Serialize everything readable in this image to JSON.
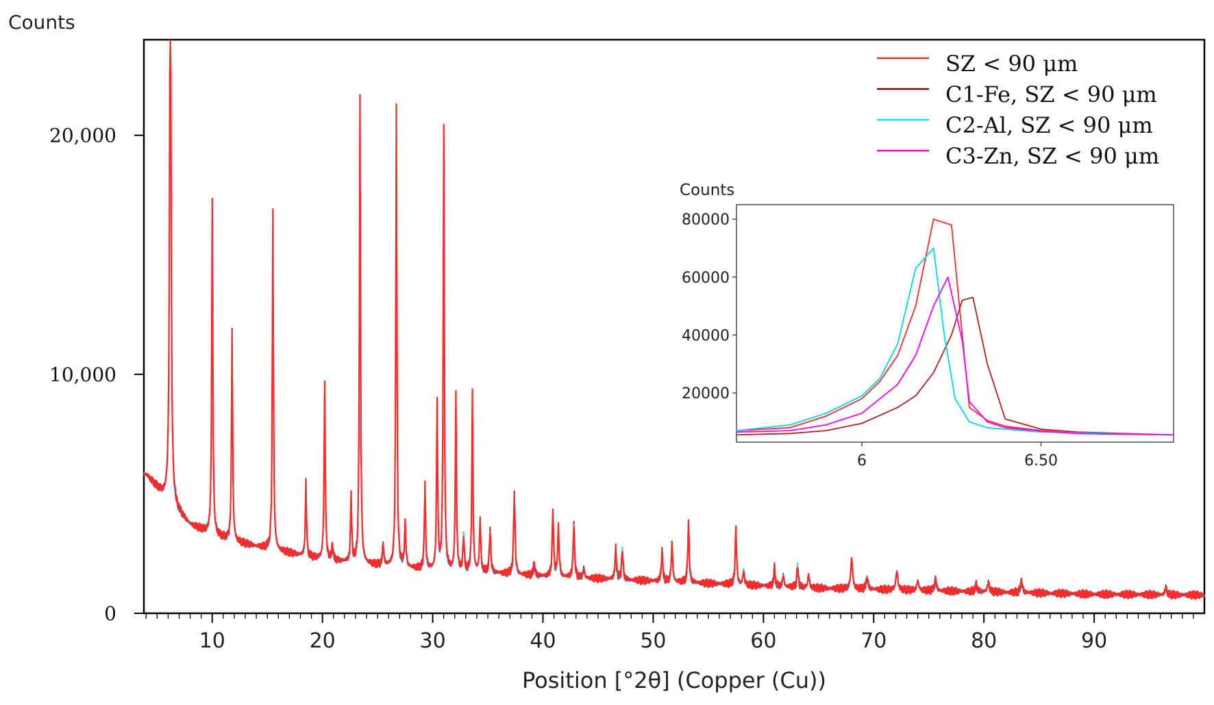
{
  "chart_data": [
    {
      "type": "line",
      "title": "",
      "ylabel": "Counts",
      "xlabel": "Position [°2θ] (Copper (Cu))",
      "xlim": [
        3.8,
        100
      ],
      "ylim": [
        0,
        24000
      ],
      "x_ticks": [
        10,
        20,
        30,
        40,
        50,
        60,
        70,
        80,
        90
      ],
      "y_ticks": [
        0,
        10000,
        20000
      ],
      "y_tick_labels": [
        "0",
        "10,000",
        "20,000"
      ],
      "grid": false,
      "legend_position": "top-right",
      "background": [
        [
          4,
          5800
        ],
        [
          6,
          4700
        ],
        [
          8,
          3700
        ],
        [
          10,
          3300
        ],
        [
          12,
          3000
        ],
        [
          15,
          2700
        ],
        [
          20,
          2250
        ],
        [
          25,
          2000
        ],
        [
          30,
          1800
        ],
        [
          35,
          1700
        ],
        [
          40,
          1550
        ],
        [
          45,
          1450
        ],
        [
          50,
          1350
        ],
        [
          55,
          1250
        ],
        [
          60,
          1150
        ],
        [
          65,
          1050
        ],
        [
          70,
          1000
        ],
        [
          75,
          950
        ],
        [
          80,
          900
        ],
        [
          85,
          850
        ],
        [
          90,
          800
        ],
        [
          95,
          780
        ],
        [
          100,
          760
        ]
      ],
      "peaks": [
        [
          6.2,
          26000,
          0.15
        ],
        [
          10.0,
          14000,
          0.12
        ],
        [
          11.8,
          8900,
          0.12
        ],
        [
          15.5,
          14200,
          0.12
        ],
        [
          18.5,
          3100,
          0.12
        ],
        [
          20.2,
          7400,
          0.13
        ],
        [
          20.9,
          600,
          0.15
        ],
        [
          22.6,
          2900,
          0.12
        ],
        [
          23.4,
          19500,
          0.12
        ],
        [
          25.5,
          900,
          0.15
        ],
        [
          26.7,
          19500,
          0.12
        ],
        [
          27.5,
          1800,
          0.15
        ],
        [
          29.3,
          3600,
          0.13
        ],
        [
          30.4,
          7100,
          0.12
        ],
        [
          31.0,
          18500,
          0.12
        ],
        [
          32.1,
          7500,
          0.12
        ],
        [
          32.8,
          1500,
          0.13
        ],
        [
          33.6,
          7500,
          0.12
        ],
        [
          34.3,
          2300,
          0.13
        ],
        [
          35.2,
          1800,
          0.15
        ],
        [
          37.4,
          3500,
          0.15
        ],
        [
          39.2,
          500,
          0.15
        ],
        [
          40.9,
          2800,
          0.15
        ],
        [
          41.4,
          2100,
          0.15
        ],
        [
          42.8,
          2300,
          0.15
        ],
        [
          43.7,
          400,
          0.15
        ],
        [
          46.6,
          1300,
          0.15
        ],
        [
          47.2,
          1300,
          0.15
        ],
        [
          50.8,
          1300,
          0.15
        ],
        [
          51.7,
          1600,
          0.15
        ],
        [
          53.2,
          2500,
          0.15
        ],
        [
          57.5,
          2400,
          0.15
        ],
        [
          58.2,
          600,
          0.15
        ],
        [
          61.0,
          800,
          0.15
        ],
        [
          61.8,
          500,
          0.15
        ],
        [
          63.1,
          900,
          0.15
        ],
        [
          64.1,
          600,
          0.15
        ],
        [
          68.0,
          1300,
          0.2
        ],
        [
          69.4,
          500,
          0.2
        ],
        [
          72.1,
          800,
          0.2
        ],
        [
          74.0,
          400,
          0.2
        ],
        [
          75.6,
          500,
          0.2
        ],
        [
          79.3,
          300,
          0.2
        ],
        [
          80.4,
          400,
          0.2
        ],
        [
          83.4,
          500,
          0.2
        ],
        [
          96.5,
          300,
          0.2
        ]
      ],
      "series": [
        {
          "name": "SZ < 90 μm",
          "color": "#ff2a2a",
          "scale": 1.0,
          "offset": 0.1
        },
        {
          "name": "C1-Fe, SZ < 90 μm",
          "color": "#8b0000",
          "scale": 0.97,
          "offset": 2.2
        },
        {
          "name": "C2-Al, SZ < 90 μm",
          "color": "#00e5ee",
          "scale": 0.93,
          "offset": 4.1
        },
        {
          "name": "C3-Zn, SZ < 90 μm",
          "color": "#ff00ff",
          "scale": 0.9,
          "offset": 6.3
        }
      ]
    },
    {
      "type": "line",
      "title": "",
      "ylabel": "Counts",
      "xlabel": "",
      "xlim": [
        5.65,
        6.87
      ],
      "ylim": [
        3000,
        85000
      ],
      "x_ticks": [
        6,
        6.5
      ],
      "x_tick_labels": [
        "6",
        "6.50"
      ],
      "y_ticks": [
        20000,
        40000,
        60000,
        80000
      ],
      "y_tick_labels": [
        "20000",
        "40000",
        "60000",
        "80000"
      ],
      "grid": false,
      "series": [
        {
          "name": "SZ < 90 μm",
          "color": "#ff2a2a",
          "x": [
            5.65,
            5.8,
            5.9,
            6.0,
            6.05,
            6.1,
            6.15,
            6.2,
            6.25,
            6.3,
            6.35,
            6.4,
            6.5,
            6.6,
            6.87
          ],
          "y": [
            7000,
            8000,
            12000,
            18000,
            24000,
            33000,
            50000,
            80000,
            78000,
            15000,
            10500,
            8500,
            7000,
            6000,
            5500
          ]
        },
        {
          "name": "C1-Fe, SZ < 90 μm",
          "color": "#b22222",
          "x": [
            5.65,
            5.8,
            5.9,
            6.0,
            6.1,
            6.15,
            6.2,
            6.25,
            6.28,
            6.31,
            6.35,
            6.4,
            6.5,
            6.6,
            6.87
          ],
          "y": [
            5500,
            6000,
            7000,
            9500,
            15000,
            19000,
            27000,
            40000,
            52000,
            53000,
            30000,
            11000,
            7500,
            6500,
            5500
          ]
        },
        {
          "name": "C2-Al, SZ < 90 μm",
          "color": "#00d8e8",
          "x": [
            5.65,
            5.8,
            5.9,
            6.0,
            6.05,
            6.1,
            6.15,
            6.2,
            6.23,
            6.26,
            6.3,
            6.35,
            6.4,
            6.5,
            6.87
          ],
          "y": [
            7000,
            9000,
            13000,
            19000,
            25000,
            37000,
            63000,
            70000,
            40000,
            18000,
            10000,
            8000,
            7500,
            6500,
            5500
          ]
        },
        {
          "name": "C3-Zn, SZ < 90 μm",
          "color": "#ff00ff",
          "x": [
            5.65,
            5.8,
            5.9,
            6.0,
            6.1,
            6.15,
            6.2,
            6.24,
            6.28,
            6.3,
            6.35,
            6.4,
            6.5,
            6.6,
            6.87
          ],
          "y": [
            6500,
            7000,
            9000,
            13000,
            23000,
            33000,
            50000,
            60000,
            38000,
            17000,
            10000,
            8000,
            6800,
            6000,
            5500
          ]
        }
      ]
    }
  ]
}
